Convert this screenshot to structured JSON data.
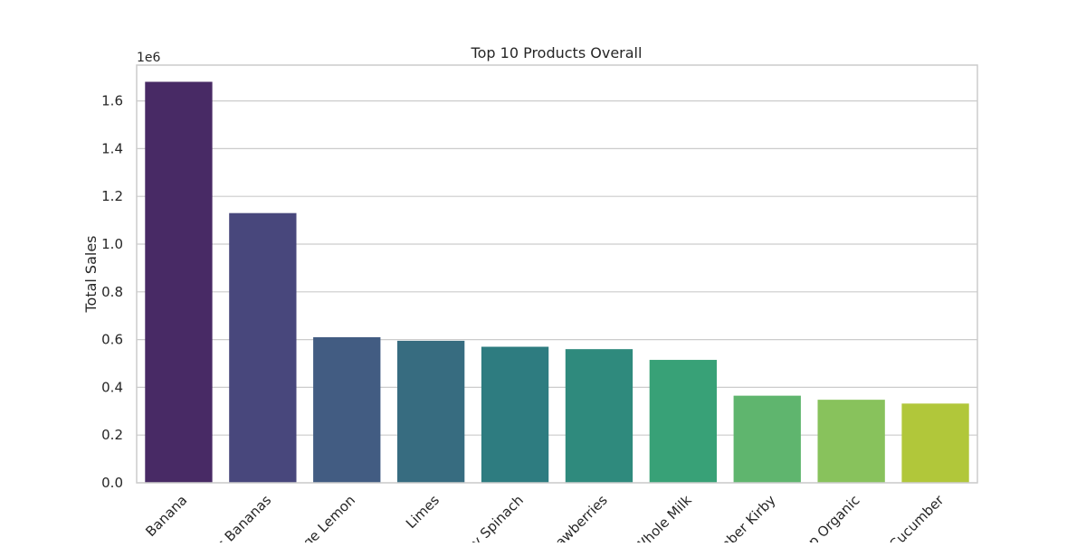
{
  "chart_data": {
    "type": "bar",
    "title": "Top 10 Products Overall",
    "xlabel": "",
    "ylabel": "Total Sales",
    "y_offset_label": "1e6",
    "ylim": [
      0,
      1.75
    ],
    "y_ticks": [
      0.0,
      0.2,
      0.4,
      0.6,
      0.8,
      1.0,
      1.2,
      1.4,
      1.6
    ],
    "y_tick_labels": [
      "0.0",
      "0.2",
      "0.4",
      "0.6",
      "0.8",
      "1.0",
      "1.2",
      "1.4",
      "1.6"
    ],
    "grid": "horizontal",
    "categories": [
      "Banana",
      "Bag of Organic Bananas",
      "Organic Large Lemon",
      "Limes",
      "Organic Baby Spinach",
      "Strawberries",
      "Organic Whole Milk",
      "Cucumber Kirby",
      "Organic Celery Organic",
      "Organic Cucumber"
    ],
    "visible_category_labels": [
      "Banana",
      "ic Bananas",
      "ge Lemon",
      "Limes",
      "y Spinach",
      "rawberries",
      "Whole Milk",
      "mber Kirby",
      "p Organic",
      "Cucumber"
    ],
    "values": [
      1.68,
      1.13,
      0.61,
      0.595,
      0.57,
      0.56,
      0.515,
      0.365,
      0.348,
      0.332
    ],
    "colors": [
      "#482a65",
      "#48477c",
      "#425c82",
      "#376c80",
      "#2e7c80",
      "#2f8a7d",
      "#38a177",
      "#5fb56e",
      "#88c25c",
      "#b1c73a"
    ]
  }
}
